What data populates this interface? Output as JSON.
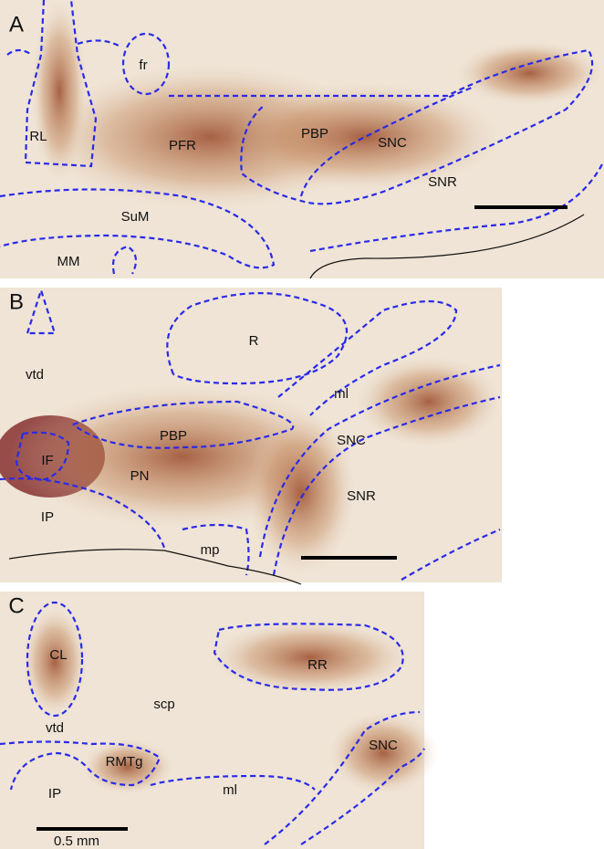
{
  "panels": [
    {
      "letter": "A",
      "labels": [
        "fr",
        "RL",
        "PFR",
        "PBP",
        "SNC",
        "SNR",
        "SuM",
        "MM"
      ]
    },
    {
      "letter": "B",
      "labels": [
        "R",
        "vtd",
        "ml",
        "PBP",
        "SNC",
        "IF",
        "PN",
        "SNR",
        "IP",
        "mp"
      ]
    },
    {
      "letter": "C",
      "labels": [
        "CL",
        "RR",
        "scp",
        "vtd",
        "SNC",
        "RMTg",
        "IP",
        "ml"
      ]
    }
  ],
  "scale_bar": "0.5 mm"
}
